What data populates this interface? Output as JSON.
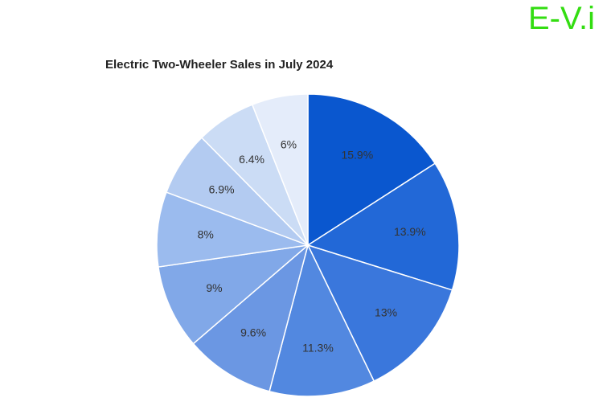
{
  "watermark": {
    "text": "E-V.i",
    "color": "#33dd11"
  },
  "chart_data": {
    "type": "pie",
    "title": "Electric Two-Wheeler Sales in July 2024",
    "slices": [
      {
        "label": "15.9%",
        "value": 15.9,
        "color": "#0a57cf"
      },
      {
        "label": "13.9%",
        "value": 13.9,
        "color": "#2268d7"
      },
      {
        "label": "13%",
        "value": 13.0,
        "color": "#3a77dc"
      },
      {
        "label": "11.3%",
        "value": 11.3,
        "color": "#5288e0"
      },
      {
        "label": "9.6%",
        "value": 9.6,
        "color": "#6b97e3"
      },
      {
        "label": "9%",
        "value": 9.0,
        "color": "#81a8e8"
      },
      {
        "label": "8%",
        "value": 8.0,
        "color": "#9bbbee"
      },
      {
        "label": "6.9%",
        "value": 6.9,
        "color": "#b3cbf1"
      },
      {
        "label": "6.4%",
        "value": 6.4,
        "color": "#cbdcf5"
      },
      {
        "label": "6%",
        "value": 6.0,
        "color": "#e4ecfa"
      }
    ],
    "legend": "none",
    "start_angle": "12 o'clock",
    "direction": "clockwise"
  }
}
